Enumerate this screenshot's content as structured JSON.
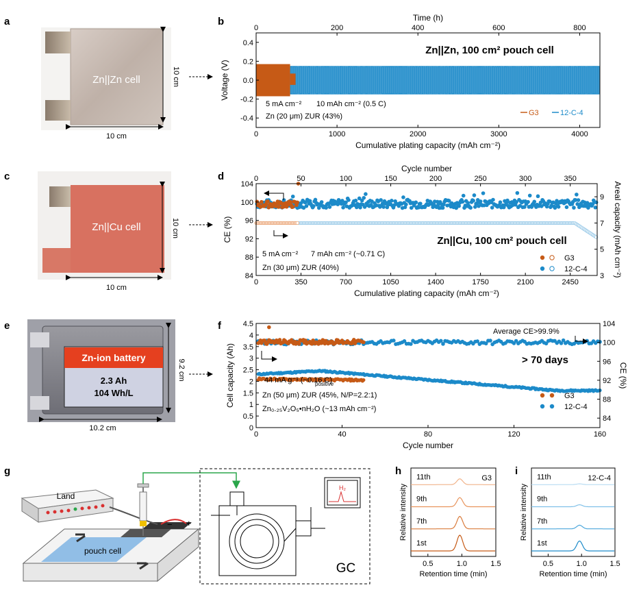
{
  "panel_letters": [
    "a",
    "b",
    "c",
    "d",
    "e",
    "f",
    "g",
    "h",
    "i"
  ],
  "colors": {
    "g3": "#c65a16",
    "c124": "#1c8ac9",
    "c124_light": "#9ccbe8",
    "g3_light": "#eba77a",
    "axis": "#000000"
  },
  "photo_a": {
    "label": "Zn||Zn cell",
    "dim_v": "10 cm",
    "dim_h": "10 cm"
  },
  "photo_c": {
    "label": "Zn||Cu cell",
    "dim_v": "10 cm",
    "dim_h": "10 cm"
  },
  "photo_e": {
    "banner": "Zn-ion battery",
    "line1": "2.3 Ah",
    "line2": "104 Wh/L",
    "dim_v": "9.2 cm",
    "dim_h": "10.2 cm"
  },
  "schematic_g": {
    "instrument": "Land",
    "cell": "pouch cell",
    "gc": "GC",
    "h2": "H₂",
    "minus": "−",
    "plus": "+"
  },
  "chart_data": [
    {
      "id": "b",
      "type": "line",
      "title": "Zn||Zn, 100 cm² pouch cell",
      "xlabel": "Cumulative plating capacity (mAh cm⁻²)",
      "ylabel": "Voltage (V)",
      "top_xlabel": "Time (h)",
      "xlim": [
        0,
        4250
      ],
      "ylim": [
        -0.5,
        0.5
      ],
      "xticks": [
        "0",
        "1000",
        "2000",
        "3000",
        "4000"
      ],
      "xtick_values": [
        0,
        1000,
        2000,
        3000,
        4000
      ],
      "yticks": [
        "-0.4",
        "-0.2",
        "0.0",
        "0.2",
        "0.4"
      ],
      "ytick_values": [
        -0.4,
        -0.2,
        0,
        0.2,
        0.4
      ],
      "top_ticks": [
        "0",
        "200",
        "400",
        "600",
        "800"
      ],
      "top_tick_values": [
        0,
        200,
        400,
        600,
        800
      ],
      "top_lim": [
        0,
        850
      ],
      "annotations": [
        "5 mA cm⁻²",
        "10 mAh cm⁻² (0.5 C)",
        "Zn (20 μm)  ZUR (43%)"
      ],
      "series": [
        {
          "name": "G3",
          "x_end": 420,
          "amplitude": 0.17
        },
        {
          "name": "12-C-4",
          "x_end": 4250,
          "amplitude": 0.15
        }
      ],
      "legend": [
        "G3",
        "12-C-4"
      ]
    },
    {
      "id": "d",
      "type": "scatter",
      "title": "Zn||Cu, 100 cm² pouch cell",
      "xlabel": "Cumulative plating capacity (mAh cm⁻²)",
      "ylabel": "CE (%)",
      "y2label": "Areal capacity (mAh cm⁻²)",
      "top_xlabel": "Cycle number",
      "xlim": [
        0,
        2660
      ],
      "ylim": [
        84,
        104
      ],
      "y2lim": [
        3,
        10
      ],
      "xticks": [
        "0",
        "350",
        "700",
        "1050",
        "1400",
        "1750",
        "2100",
        "2450"
      ],
      "xtick_values": [
        0,
        350,
        700,
        1050,
        1400,
        1750,
        2100,
        2450
      ],
      "yticks": [
        "84",
        "88",
        "92",
        "96",
        "100",
        "104"
      ],
      "ytick_values": [
        84,
        88,
        92,
        96,
        100,
        104
      ],
      "y2ticks": [
        "3",
        "5",
        "7",
        "9"
      ],
      "y2tick_values": [
        3,
        5,
        7,
        9
      ],
      "top_ticks": [
        "0",
        "50",
        "100",
        "150",
        "200",
        "250",
        "300",
        "350"
      ],
      "top_tick_values": [
        0,
        50,
        100,
        150,
        200,
        250,
        300,
        350
      ],
      "top_lim": [
        0,
        380
      ],
      "annotations": [
        "5 mA cm⁻²",
        "7 mAh cm⁻² (~0.71 C)",
        "Zn (30 μm)  ZUR (40%)"
      ],
      "series": [
        {
          "name": "G3 CE",
          "cycles": 47,
          "mean": 99.5
        },
        {
          "name": "12-C-4 CE",
          "cycles": 380,
          "mean": 99.6
        },
        {
          "name": "G3 capacity",
          "cycles": 47,
          "value": 7
        },
        {
          "name": "12-C-4 capacity",
          "cycles": 380,
          "value": 7
        }
      ],
      "legend": [
        "G3",
        "12-C-4"
      ]
    },
    {
      "id": "f",
      "type": "scatter",
      "title": "> 70 days",
      "xlabel": "Cycle number",
      "ylabel": "Cell capacity (Ah)",
      "y2label": "CE (%)",
      "xlim": [
        0,
        160
      ],
      "ylim": [
        0,
        4.5
      ],
      "y2lim": [
        82,
        104
      ],
      "xticks": [
        "0",
        "40",
        "80",
        "120",
        "160"
      ],
      "xtick_values": [
        0,
        40,
        80,
        120,
        160
      ],
      "yticks": [
        "0",
        "0.5",
        "1",
        "1.5",
        "2",
        "2.5",
        "3",
        "3.5",
        "4",
        "4.5"
      ],
      "ytick_values": [
        0,
        0.5,
        1,
        1.5,
        2,
        2.5,
        3,
        3.5,
        4,
        4.5
      ],
      "y2ticks": [
        "84",
        "88",
        "92",
        "96",
        "100",
        "104"
      ],
      "y2tick_values": [
        84,
        88,
        92,
        96,
        100,
        104
      ],
      "annotations": [
        "Average CE>99.9%",
        "44 mA g⁻¹ (~0.16 C)",
        "Zn (50 μm)  ZUR (45%, N/P=2.2:1)",
        "Zn₀.₂₅V₂O₅•nH₂O (~13 mAh cm⁻²)"
      ],
      "annotation_subscript": "positive",
      "series": [
        {
          "name": "G3 capacity",
          "cycles": 50,
          "start": 2.1,
          "end": 2.05
        },
        {
          "name": "12-C-4 capacity",
          "cycles": 160,
          "start": 2.3,
          "peak": 2.45,
          "end": 1.6
        },
        {
          "name": "G3 CE",
          "cycles": 50,
          "mean": 100.1
        },
        {
          "name": "12-C-4 CE",
          "cycles": 160,
          "mean": 100.0
        }
      ],
      "legend": [
        "G3",
        "12-C-4"
      ]
    },
    {
      "id": "h",
      "type": "line",
      "title": "G3",
      "xlabel": "Retention time (min)",
      "ylabel": "Relative intensity",
      "xlim": [
        0.25,
        1.5
      ],
      "xticks": [
        "0.5",
        "1.0",
        "1.5"
      ],
      "xtick_values": [
        0.5,
        1.0,
        1.5
      ],
      "traces": [
        {
          "label": "11th",
          "peak_height": 0.35
        },
        {
          "label": "9th",
          "peak_height": 0.55
        },
        {
          "label": "7th",
          "peak_height": 0.75
        },
        {
          "label": "1st",
          "peak_height": 0.95
        }
      ]
    },
    {
      "id": "i",
      "type": "line",
      "title": "12-C-4",
      "xlabel": "Retention time (min)",
      "ylabel": "Relative intensity",
      "xlim": [
        0.25,
        1.5
      ],
      "xticks": [
        "0.5",
        "1.0",
        "1.5"
      ],
      "xtick_values": [
        0.5,
        1.0,
        1.5
      ],
      "traces": [
        {
          "label": "11th",
          "peak_height": 0.05
        },
        {
          "label": "9th",
          "peak_height": 0.12
        },
        {
          "label": "7th",
          "peak_height": 0.22
        },
        {
          "label": "1st",
          "peak_height": 0.6
        }
      ]
    }
  ]
}
